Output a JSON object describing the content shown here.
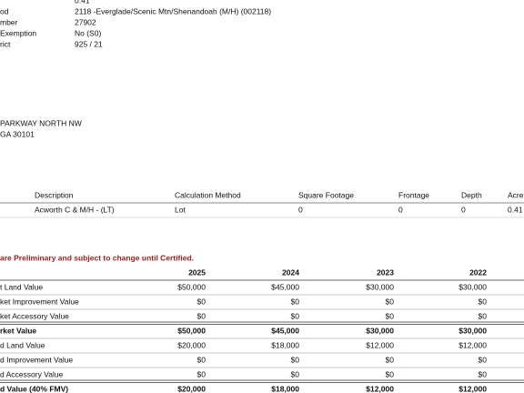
{
  "property": {
    "top_value": "0.41",
    "rows": [
      {
        "label": "od",
        "value": "2118 -Everglade/Scenic Mtn/Shenandoah (M/H) (002118)"
      },
      {
        "label": "mber",
        "value": "27902"
      },
      {
        "label": "Exemption",
        "value": "No (S0)"
      },
      {
        "label": "rict",
        "value": "925 / 21"
      }
    ]
  },
  "address": [
    "PARKWAY NORTH NW",
    "GA 30101"
  ],
  "land_table": {
    "headers": [
      "Description",
      "Calculation Method",
      "Square Footage",
      "Frontage",
      "Depth",
      "Acre"
    ],
    "rows": [
      [
        "Acworth C & M/H - (LT)",
        "Lot",
        "0",
        "0",
        "0",
        "0.41"
      ]
    ]
  },
  "note": "are Preliminary and subject to change until Certified.",
  "values_table": {
    "years": [
      "2025",
      "2024",
      "2023",
      "2022"
    ],
    "rows": [
      {
        "label": "t Land Value",
        "values": [
          "$50,000",
          "$45,000",
          "$30,000",
          "$30,000"
        ]
      },
      {
        "label": "ket Improvement Value",
        "values": [
          "$0",
          "$0",
          "$0",
          "$0"
        ]
      },
      {
        "label": "ket Accessory Value",
        "values": [
          "$0",
          "$0",
          "$0",
          "$0"
        ]
      },
      {
        "label": "rket Value",
        "values": [
          "$50,000",
          "$45,000",
          "$30,000",
          "$30,000"
        ],
        "bold": true
      },
      {
        "label": "d Land Value",
        "values": [
          "$20,000",
          "$18,000",
          "$12,000",
          "$12,000"
        ]
      },
      {
        "label": "d Improvement Value",
        "values": [
          "$0",
          "$0",
          "$0",
          "$0"
        ]
      },
      {
        "label": "d Accessory Value",
        "values": [
          "$0",
          "$0",
          "$0",
          "$0"
        ]
      },
      {
        "label": "d Value (40% FMV)",
        "values": [
          "$20,000",
          "$18,000",
          "$12,000",
          "$12,000"
        ],
        "bold": true
      }
    ]
  }
}
